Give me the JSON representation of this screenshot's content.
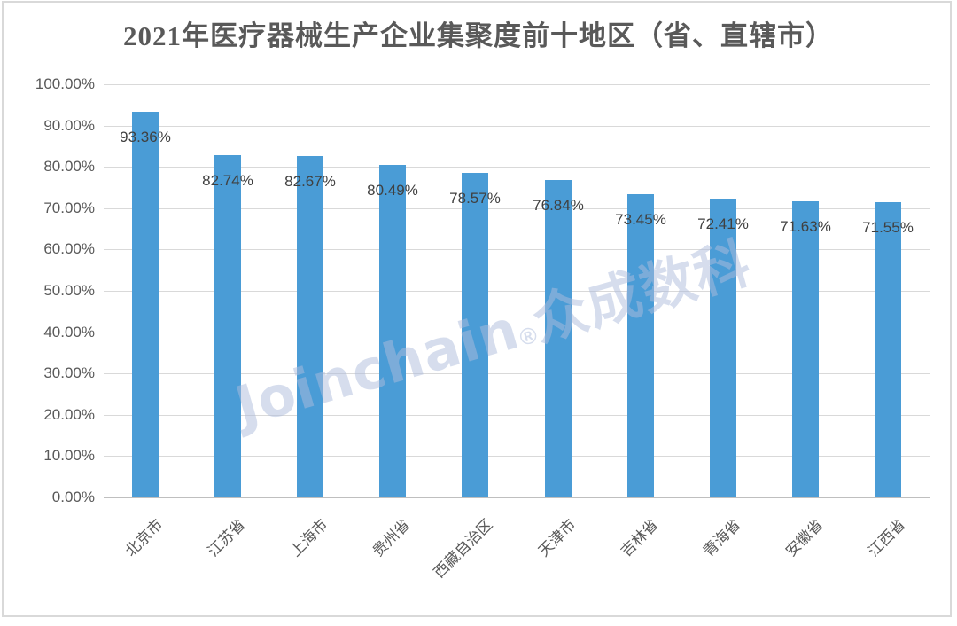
{
  "page": {
    "background": "#ffffff",
    "frame_border_color": "#d9d9d9"
  },
  "chart_data": {
    "type": "bar",
    "title": "2021年医疗器械生产企业集聚度前十地区（省、直辖市）",
    "categories": [
      "北京市",
      "江苏省",
      "上海市",
      "贵州省",
      "西藏自治区",
      "天津市",
      "吉林省",
      "青海省",
      "安徽省",
      "江西省"
    ],
    "values": [
      93.36,
      82.74,
      82.67,
      80.49,
      78.57,
      76.84,
      73.45,
      72.41,
      71.63,
      71.55
    ],
    "value_labels": [
      "93.36%",
      "82.74%",
      "82.67%",
      "80.49%",
      "78.57%",
      "76.84%",
      "73.45%",
      "72.41%",
      "71.63%",
      "71.55%"
    ],
    "xlabel": "",
    "ylabel": "",
    "ylim": [
      0,
      100
    ],
    "ytick_step": 10,
    "yticks": [
      "100.00%",
      "90.00%",
      "80.00%",
      "70.00%",
      "60.00%",
      "50.00%",
      "40.00%",
      "30.00%",
      "20.00%",
      "10.00%",
      "0.00%"
    ],
    "grid": true,
    "legend_position": "none",
    "colors": {
      "bar": "#4A9CD6",
      "gridline": "#D9D9D9",
      "axis_line": "#BFBFBF",
      "axis_tick_label": "#595959",
      "data_label": "#404040",
      "title": "#595959"
    }
  },
  "watermark": {
    "latin": "Joinchain",
    "reg": "®",
    "cn": "众成数科",
    "color": "#AEBDDC"
  }
}
